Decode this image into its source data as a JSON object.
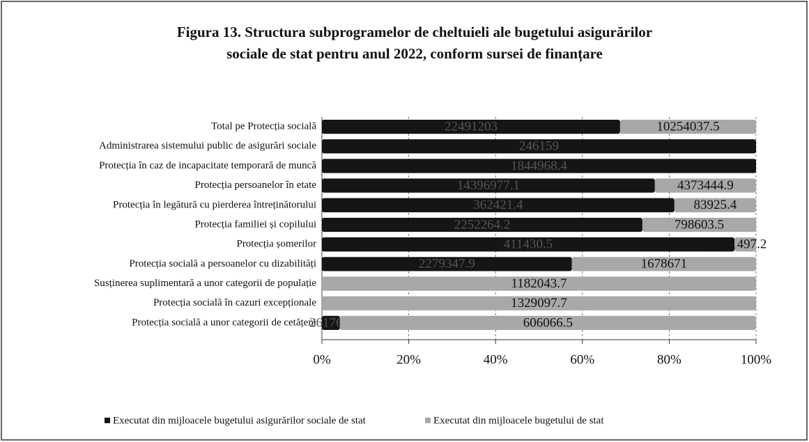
{
  "chart_data": {
    "type": "bar100h",
    "title": [
      "Figura 13. Structura subprogramelor de cheltuieli ale bugetului asigurărilor",
      "sociale de stat pentru anul 2022, conform sursei de finanțare"
    ],
    "categories": [
      "Total pe Protecția socială",
      "Administrarea sistemului public de asigurări sociale",
      "Protecția în caz de incapacitate temporară de muncă",
      "Protecția persoanelor în etate",
      "Protecția în legătură cu pierderea întreținătorului",
      "Protecția familiei și copilului",
      "Protecția șomerilor",
      "Protecția socială a persoanelor cu dizabilități",
      "Susținerea suplimentară a unor categorii de populație",
      "Protecția socială în cazuri excepționale",
      "Protecția socială a unor categorii de cetățeni"
    ],
    "series": [
      {
        "name": "Executat din mijloacele  bugetului asigurărilor sociale de stat",
        "color": "#151515",
        "values": [
          22491203.0,
          246159.0,
          1844968.4,
          14396977.1,
          362421.4,
          2252264.2,
          411430.5,
          2279347.9,
          null,
          null,
          26176.5
        ]
      },
      {
        "name": "Executat din mijloacele bugetului de stat",
        "color": "#a8a8a8",
        "values": [
          10254037.5,
          null,
          null,
          4373444.9,
          83925.4,
          798603.5,
          21497.2,
          1678671.0,
          1182043.7,
          1329097.7,
          606066.5
        ]
      }
    ],
    "xlim": [
      0,
      100
    ],
    "xticks": [
      {
        "value": 0,
        "label": "0%"
      },
      {
        "value": 20,
        "label": "20%"
      },
      {
        "value": 40,
        "label": "40%"
      },
      {
        "value": 60,
        "label": "60%"
      },
      {
        "value": 80,
        "label": "80%"
      },
      {
        "value": 100,
        "label": "100%"
      }
    ],
    "grid": true
  }
}
